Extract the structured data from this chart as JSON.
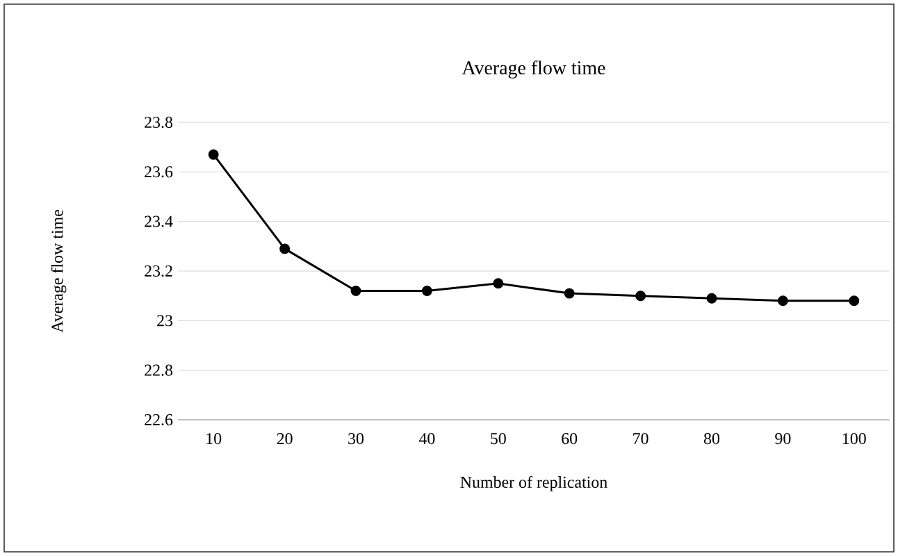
{
  "chart_data": {
    "type": "line",
    "title": "Average flow time",
    "xlabel": "Number of replication",
    "ylabel": "Average flow time",
    "categories": [
      "10",
      "20",
      "30",
      "40",
      "50",
      "60",
      "70",
      "80",
      "90",
      "100"
    ],
    "series": [
      {
        "color": "#000000",
        "values": [
          23.67,
          23.29,
          23.12,
          23.12,
          23.15,
          23.11,
          23.1,
          23.09,
          23.08,
          23.08
        ]
      }
    ],
    "ylim": [
      22.6,
      23.8
    ],
    "yticks": [
      22.6,
      22.8,
      23,
      23.2,
      23.4,
      23.6,
      23.8
    ],
    "grid": "y",
    "marker": "circle",
    "line_style": "solid"
  }
}
